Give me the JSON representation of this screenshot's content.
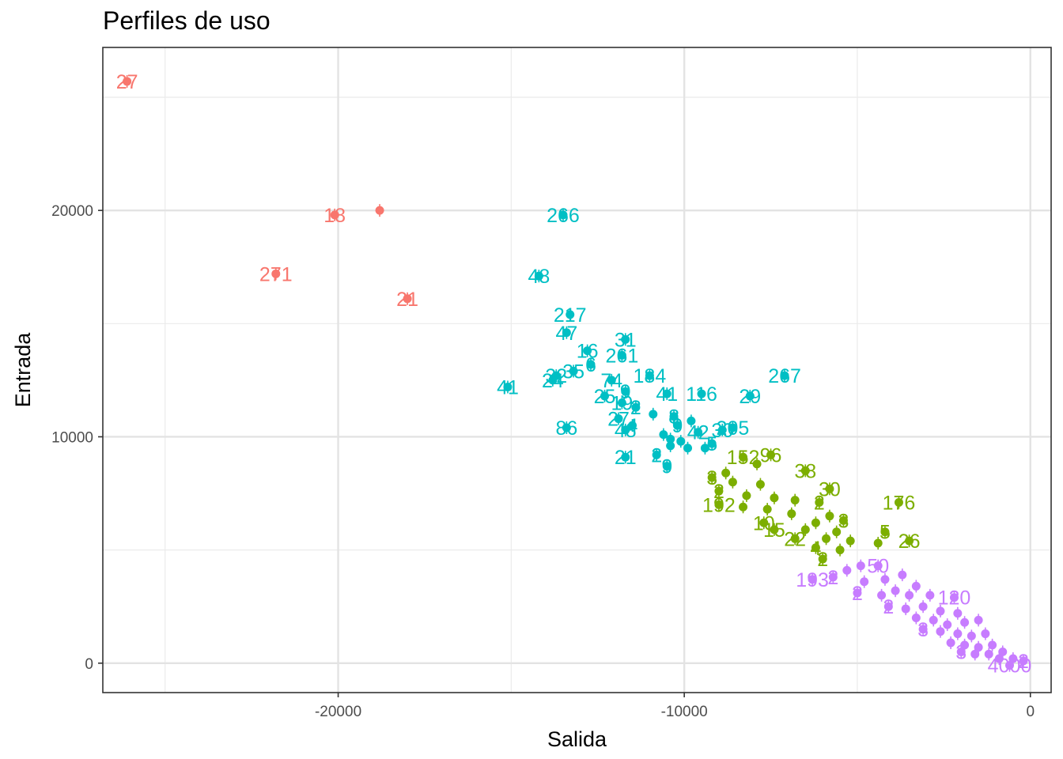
{
  "chart_data": {
    "type": "scatter",
    "title": "Perfiles de uso",
    "xlabel": "Salida",
    "ylabel": "Entrada",
    "xlim": [
      -26800,
      600
    ],
    "ylim": [
      -1300,
      27200
    ],
    "x_ticks": [
      -20000,
      -10000,
      0
    ],
    "x_tick_labels": [
      "-20000",
      "-10000",
      "0"
    ],
    "y_ticks": [
      0,
      10000,
      20000
    ],
    "y_tick_labels": [
      "0",
      "10000",
      "20000"
    ],
    "grid": true,
    "legend": "none",
    "colors": {
      "cluster_red": "#F8766D",
      "cluster_green": "#7CAE00",
      "cluster_cyan": "#00BFC4",
      "cluster_purple": "#C77CFF"
    },
    "series": [
      {
        "color": "#F8766D",
        "points": [
          {
            "x": -26100,
            "y": 25700,
            "label": "27"
          },
          {
            "x": -20100,
            "y": 19800,
            "label": "18"
          },
          {
            "x": -18800,
            "y": 20000,
            "label": ""
          },
          {
            "x": -21800,
            "y": 17200,
            "label": "271"
          },
          {
            "x": -18000,
            "y": 16100,
            "label": "21"
          }
        ]
      },
      {
        "color": "#00BFC4",
        "points": [
          {
            "x": -13500,
            "y": 19800,
            "label": "266"
          },
          {
            "x": -14200,
            "y": 17100,
            "label": "48"
          },
          {
            "x": -13300,
            "y": 15400,
            "label": "217"
          },
          {
            "x": -13400,
            "y": 14600,
            "label": "47"
          },
          {
            "x": -11700,
            "y": 14300,
            "label": "31"
          },
          {
            "x": -12800,
            "y": 13800,
            "label": "16"
          },
          {
            "x": -11800,
            "y": 13600,
            "label": "261"
          },
          {
            "x": -12700,
            "y": 13200,
            "label": "6"
          },
          {
            "x": -13700,
            "y": 12700,
            "label": "32"
          },
          {
            "x": -13200,
            "y": 12900,
            "label": "35"
          },
          {
            "x": -13800,
            "y": 12500,
            "label": "24"
          },
          {
            "x": -15100,
            "y": 12200,
            "label": "41"
          },
          {
            "x": -11000,
            "y": 12700,
            "label": "184"
          },
          {
            "x": -12100,
            "y": 12500,
            "label": "74"
          },
          {
            "x": -11700,
            "y": 12000,
            "label": "9"
          },
          {
            "x": -10500,
            "y": 11900,
            "label": "41"
          },
          {
            "x": -9500,
            "y": 11900,
            "label": "116"
          },
          {
            "x": -8100,
            "y": 11800,
            "label": "29"
          },
          {
            "x": -7100,
            "y": 12700,
            "label": "267"
          },
          {
            "x": -12300,
            "y": 11800,
            "label": "25"
          },
          {
            "x": -11800,
            "y": 11500,
            "label": "19"
          },
          {
            "x": -11400,
            "y": 11300,
            "label": "2"
          },
          {
            "x": -10900,
            "y": 11000,
            "label": ""
          },
          {
            "x": -10300,
            "y": 10900,
            "label": "8"
          },
          {
            "x": -11900,
            "y": 10800,
            "label": "27"
          },
          {
            "x": -11500,
            "y": 10500,
            "label": "4"
          },
          {
            "x": -11700,
            "y": 10300,
            "label": "48"
          },
          {
            "x": -10200,
            "y": 10500,
            "label": "9"
          },
          {
            "x": -10600,
            "y": 10100,
            "label": ""
          },
          {
            "x": -9800,
            "y": 10700,
            "label": ""
          },
          {
            "x": -9600,
            "y": 10200,
            "label": "42"
          },
          {
            "x": -8600,
            "y": 10400,
            "label": "205"
          },
          {
            "x": -8900,
            "y": 10300,
            "label": "30"
          },
          {
            "x": -10400,
            "y": 9900,
            "label": ""
          },
          {
            "x": -10100,
            "y": 9800,
            "label": ""
          },
          {
            "x": -9900,
            "y": 9500,
            "label": ""
          },
          {
            "x": -13400,
            "y": 10400,
            "label": "86"
          },
          {
            "x": -11700,
            "y": 9100,
            "label": "21"
          },
          {
            "x": -10800,
            "y": 9200,
            "label": "2"
          },
          {
            "x": -10500,
            "y": 8700,
            "label": "9"
          },
          {
            "x": -10400,
            "y": 9600,
            "label": ""
          },
          {
            "x": -9400,
            "y": 9500,
            "label": ""
          },
          {
            "x": -9200,
            "y": 9700,
            "label": "5"
          }
        ]
      },
      {
        "color": "#7CAE00",
        "points": [
          {
            "x": -7500,
            "y": 9200,
            "label": "96"
          },
          {
            "x": -8300,
            "y": 9100,
            "label": "152"
          },
          {
            "x": -7900,
            "y": 8800,
            "label": ""
          },
          {
            "x": -6500,
            "y": 8500,
            "label": "38"
          },
          {
            "x": -8800,
            "y": 8400,
            "label": ""
          },
          {
            "x": -9200,
            "y": 8200,
            "label": "3"
          },
          {
            "x": -8600,
            "y": 8000,
            "label": ""
          },
          {
            "x": -7800,
            "y": 7900,
            "label": ""
          },
          {
            "x": -5800,
            "y": 7700,
            "label": "30"
          },
          {
            "x": -9000,
            "y": 7600,
            "label": "2"
          },
          {
            "x": -8200,
            "y": 7400,
            "label": ""
          },
          {
            "x": -7400,
            "y": 7300,
            "label": ""
          },
          {
            "x": -6800,
            "y": 7200,
            "label": ""
          },
          {
            "x": -6100,
            "y": 7100,
            "label": "2"
          },
          {
            "x": -9000,
            "y": 7000,
            "label": "192"
          },
          {
            "x": -8300,
            "y": 6900,
            "label": ""
          },
          {
            "x": -7600,
            "y": 6800,
            "label": ""
          },
          {
            "x": -3800,
            "y": 7100,
            "label": "176"
          },
          {
            "x": -6900,
            "y": 6600,
            "label": ""
          },
          {
            "x": -5800,
            "y": 6500,
            "label": ""
          },
          {
            "x": -7700,
            "y": 6200,
            "label": "10"
          },
          {
            "x": -6200,
            "y": 6200,
            "label": ""
          },
          {
            "x": -5400,
            "y": 6300,
            "label": "3"
          },
          {
            "x": -7400,
            "y": 5900,
            "label": "15"
          },
          {
            "x": -6500,
            "y": 5900,
            "label": ""
          },
          {
            "x": -5600,
            "y": 5800,
            "label": ""
          },
          {
            "x": -4200,
            "y": 5800,
            "label": "5"
          },
          {
            "x": -6800,
            "y": 5500,
            "label": "22"
          },
          {
            "x": -5900,
            "y": 5500,
            "label": ""
          },
          {
            "x": -5200,
            "y": 5400,
            "label": ""
          },
          {
            "x": -4400,
            "y": 5300,
            "label": ""
          },
          {
            "x": -3500,
            "y": 5400,
            "label": "26"
          },
          {
            "x": -6200,
            "y": 5100,
            "label": "4"
          },
          {
            "x": -5500,
            "y": 5000,
            "label": ""
          },
          {
            "x": -6000,
            "y": 4600,
            "label": "2"
          }
        ]
      },
      {
        "color": "#C77CFF",
        "points": [
          {
            "x": -6300,
            "y": 3700,
            "label": "193"
          },
          {
            "x": -5700,
            "y": 3800,
            "label": "2"
          },
          {
            "x": -5300,
            "y": 4100,
            "label": ""
          },
          {
            "x": -4900,
            "y": 4300,
            "label": ""
          },
          {
            "x": -4400,
            "y": 4300,
            "label": "50"
          },
          {
            "x": -4800,
            "y": 3600,
            "label": ""
          },
          {
            "x": -4200,
            "y": 3700,
            "label": ""
          },
          {
            "x": -3700,
            "y": 3900,
            "label": ""
          },
          {
            "x": -3300,
            "y": 3400,
            "label": ""
          },
          {
            "x": -5000,
            "y": 3100,
            "label": "2"
          },
          {
            "x": -4300,
            "y": 3000,
            "label": ""
          },
          {
            "x": -3900,
            "y": 3200,
            "label": ""
          },
          {
            "x": -3500,
            "y": 3000,
            "label": ""
          },
          {
            "x": -2900,
            "y": 3000,
            "label": ""
          },
          {
            "x": -2200,
            "y": 2900,
            "label": "120"
          },
          {
            "x": -4100,
            "y": 2500,
            "label": "2"
          },
          {
            "x": -3600,
            "y": 2400,
            "label": ""
          },
          {
            "x": -3100,
            "y": 2500,
            "label": ""
          },
          {
            "x": -2600,
            "y": 2300,
            "label": ""
          },
          {
            "x": -2100,
            "y": 2200,
            "label": ""
          },
          {
            "x": -3300,
            "y": 2000,
            "label": ""
          },
          {
            "x": -2800,
            "y": 1900,
            "label": ""
          },
          {
            "x": -2400,
            "y": 1700,
            "label": ""
          },
          {
            "x": -1900,
            "y": 1800,
            "label": ""
          },
          {
            "x": -1500,
            "y": 1900,
            "label": ""
          },
          {
            "x": -3100,
            "y": 1500,
            "label": "3"
          },
          {
            "x": -2600,
            "y": 1400,
            "label": ""
          },
          {
            "x": -2100,
            "y": 1300,
            "label": ""
          },
          {
            "x": -1700,
            "y": 1200,
            "label": ""
          },
          {
            "x": -1300,
            "y": 1300,
            "label": ""
          },
          {
            "x": -2300,
            "y": 900,
            "label": ""
          },
          {
            "x": -1900,
            "y": 800,
            "label": ""
          },
          {
            "x": -1500,
            "y": 700,
            "label": ""
          },
          {
            "x": -1100,
            "y": 800,
            "label": ""
          },
          {
            "x": -2000,
            "y": 500,
            "label": "3"
          },
          {
            "x": -1600,
            "y": 400,
            "label": ""
          },
          {
            "x": -1200,
            "y": 400,
            "label": ""
          },
          {
            "x": -800,
            "y": 500,
            "label": ""
          },
          {
            "x": -900,
            "y": 200,
            "label": ""
          },
          {
            "x": -500,
            "y": 200,
            "label": ""
          },
          {
            "x": -200,
            "y": 100,
            "label": "2"
          },
          {
            "x": -600,
            "y": -100,
            "label": "4000"
          }
        ]
      }
    ]
  }
}
